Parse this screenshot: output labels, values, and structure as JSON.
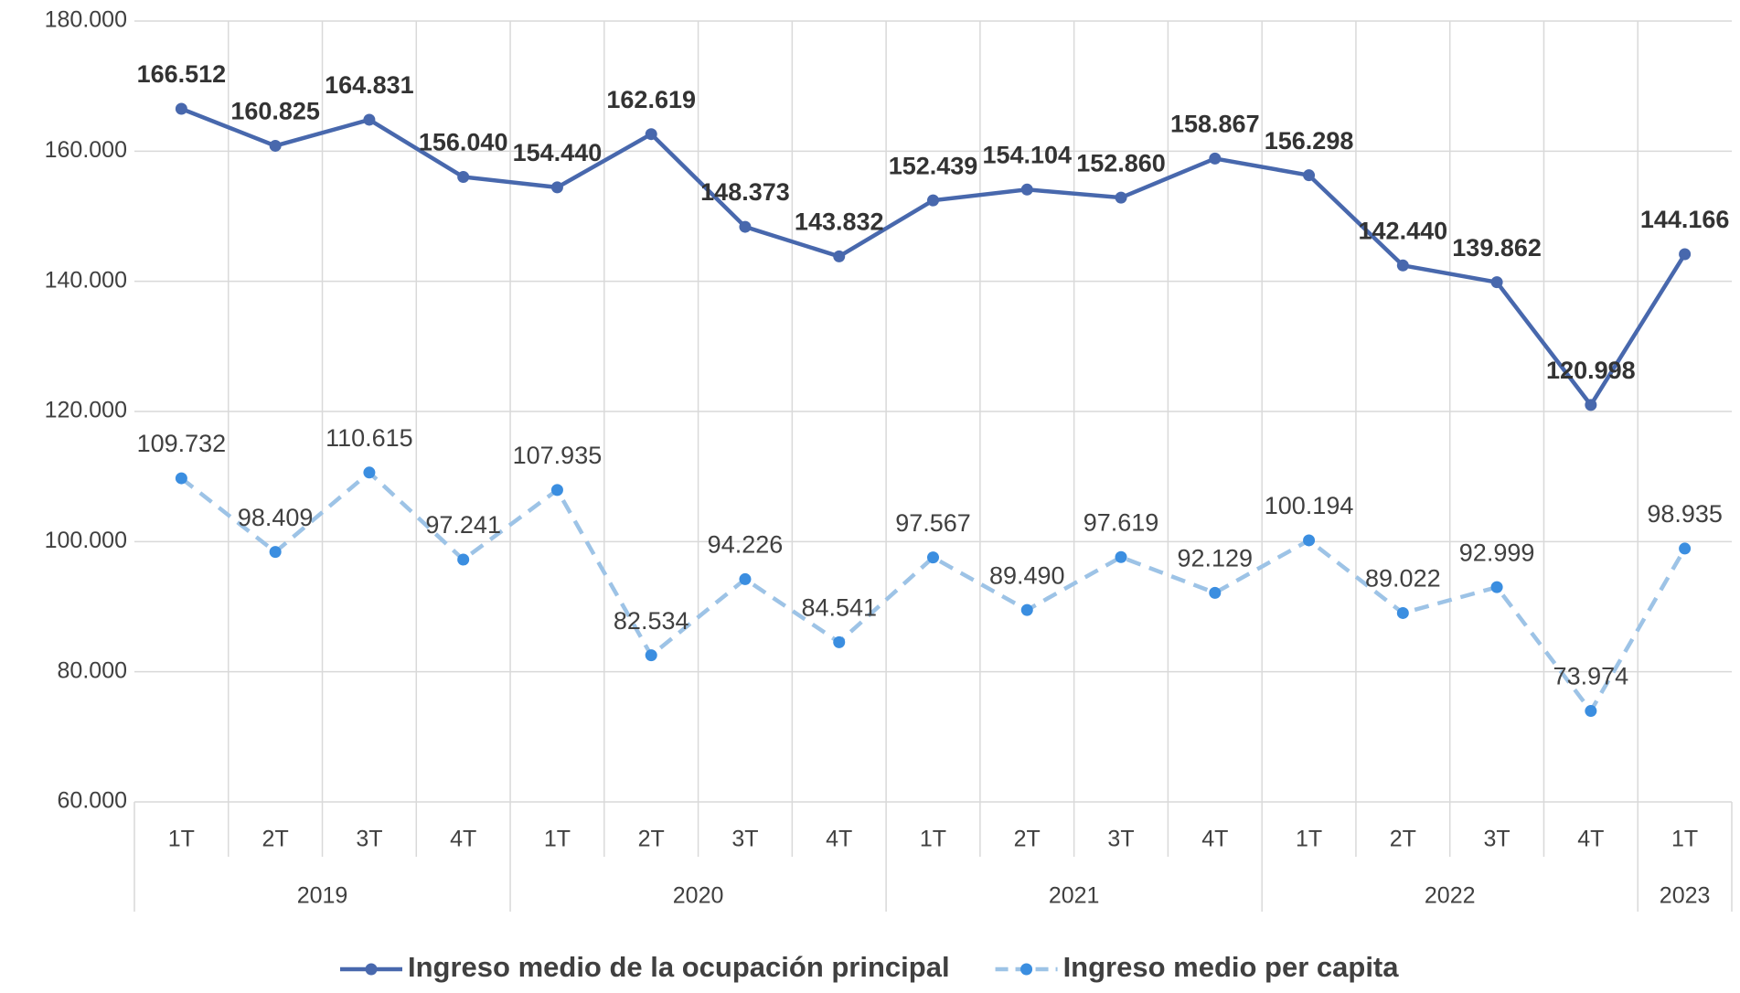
{
  "chart_data": {
    "type": "line",
    "categories": [
      "1T",
      "2T",
      "3T",
      "4T",
      "1T",
      "2T",
      "3T",
      "4T",
      "1T",
      "2T",
      "3T",
      "4T",
      "1T",
      "2T",
      "3T",
      "4T",
      "1T"
    ],
    "groups": [
      "2019",
      "2020",
      "2021",
      "2022",
      "2023"
    ],
    "series": [
      {
        "name": "Ingreso medio de la ocupación principal",
        "color": "#4868ad",
        "marker_color": "#4868ad",
        "dashed": false,
        "bold_labels": true,
        "values": [
          166512,
          160825,
          164831,
          156040,
          154440,
          162619,
          148373,
          143832,
          152439,
          154104,
          152860,
          158867,
          156298,
          142440,
          139862,
          120998,
          144166
        ],
        "value_labels": [
          "166.512",
          "160.825",
          "164.831",
          "156.040",
          "154.440",
          "162.619",
          "148.373",
          "143.832",
          "152.439",
          "154.104",
          "152.860",
          "158.867",
          "156.298",
          "142.440",
          "139.862",
          "120.998",
          "144.166"
        ]
      },
      {
        "name": "Ingreso medio per capita",
        "color": "#9dc3e6",
        "marker_color": "#3b8ee0",
        "dashed": true,
        "bold_labels": false,
        "values": [
          109732,
          98409,
          110615,
          97241,
          107935,
          82534,
          94226,
          84541,
          97567,
          89490,
          97619,
          92129,
          100194,
          89022,
          92999,
          73974,
          98935
        ],
        "value_labels": [
          "109.732",
          "98.409",
          "110.615",
          "97.241",
          "107.935",
          "82.534",
          "94.226",
          "84.541",
          "97.567",
          "89.490",
          "97.619",
          "92.129",
          "100.194",
          "89.022",
          "92.999",
          "73.974",
          "98.935"
        ]
      }
    ],
    "ylim": [
      60000,
      180000
    ],
    "yticks": [
      {
        "value": 60000,
        "label": "60.000"
      },
      {
        "value": 80000,
        "label": "80.000"
      },
      {
        "value": 100000,
        "label": "100.000"
      },
      {
        "value": 120000,
        "label": "120.000"
      },
      {
        "value": 140000,
        "label": "140.000"
      },
      {
        "value": 160000,
        "label": "160.000"
      },
      {
        "value": 180000,
        "label": "180.000"
      }
    ],
    "grid": true,
    "legend": "bottom"
  }
}
